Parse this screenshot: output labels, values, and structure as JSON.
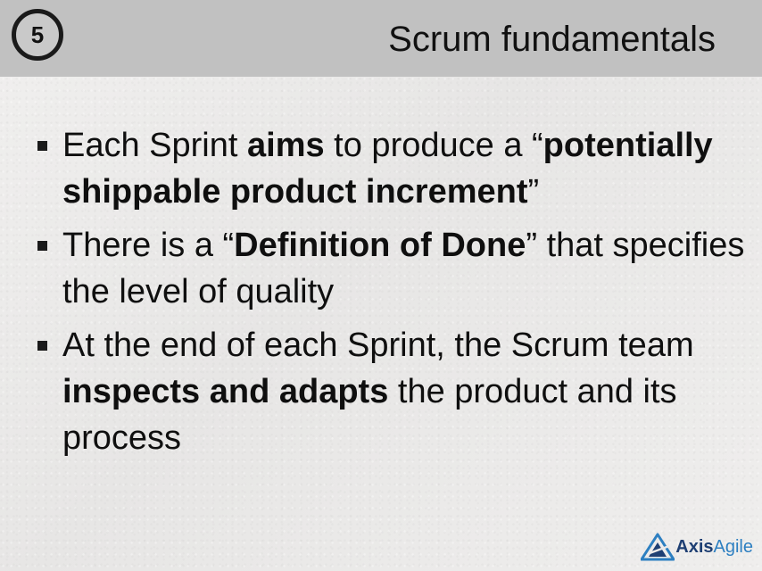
{
  "header": {
    "slide_number": "5",
    "title": "Scrum fundamentals"
  },
  "bullets": [
    {
      "segments": [
        {
          "text": "Each Sprint ",
          "bold": false
        },
        {
          "text": "aims",
          "bold": true
        },
        {
          "text": " to produce a “",
          "bold": false
        },
        {
          "text": "potentially shippable product increment",
          "bold": true
        },
        {
          "text": "”",
          "bold": false
        }
      ]
    },
    {
      "segments": [
        {
          "text": "There is a “",
          "bold": false
        },
        {
          "text": "Definition of Done",
          "bold": true
        },
        {
          "text": "” that specifies the level of quality",
          "bold": false
        }
      ]
    },
    {
      "segments": [
        {
          "text": "At the end of each Sprint, the Scrum team ",
          "bold": false
        },
        {
          "text": "inspects and adapts",
          "bold": true
        },
        {
          "text": " the product and its process",
          "bold": false
        }
      ]
    }
  ],
  "logo": {
    "part1": "Axis",
    "part2": "Agile",
    "colors": {
      "primary": "#1e3f73",
      "accent": "#2d7fc1"
    }
  },
  "colors": {
    "header_bg": "#c1c1c1",
    "slide_bg": "#ecebea",
    "text": "#0f0f0f"
  }
}
